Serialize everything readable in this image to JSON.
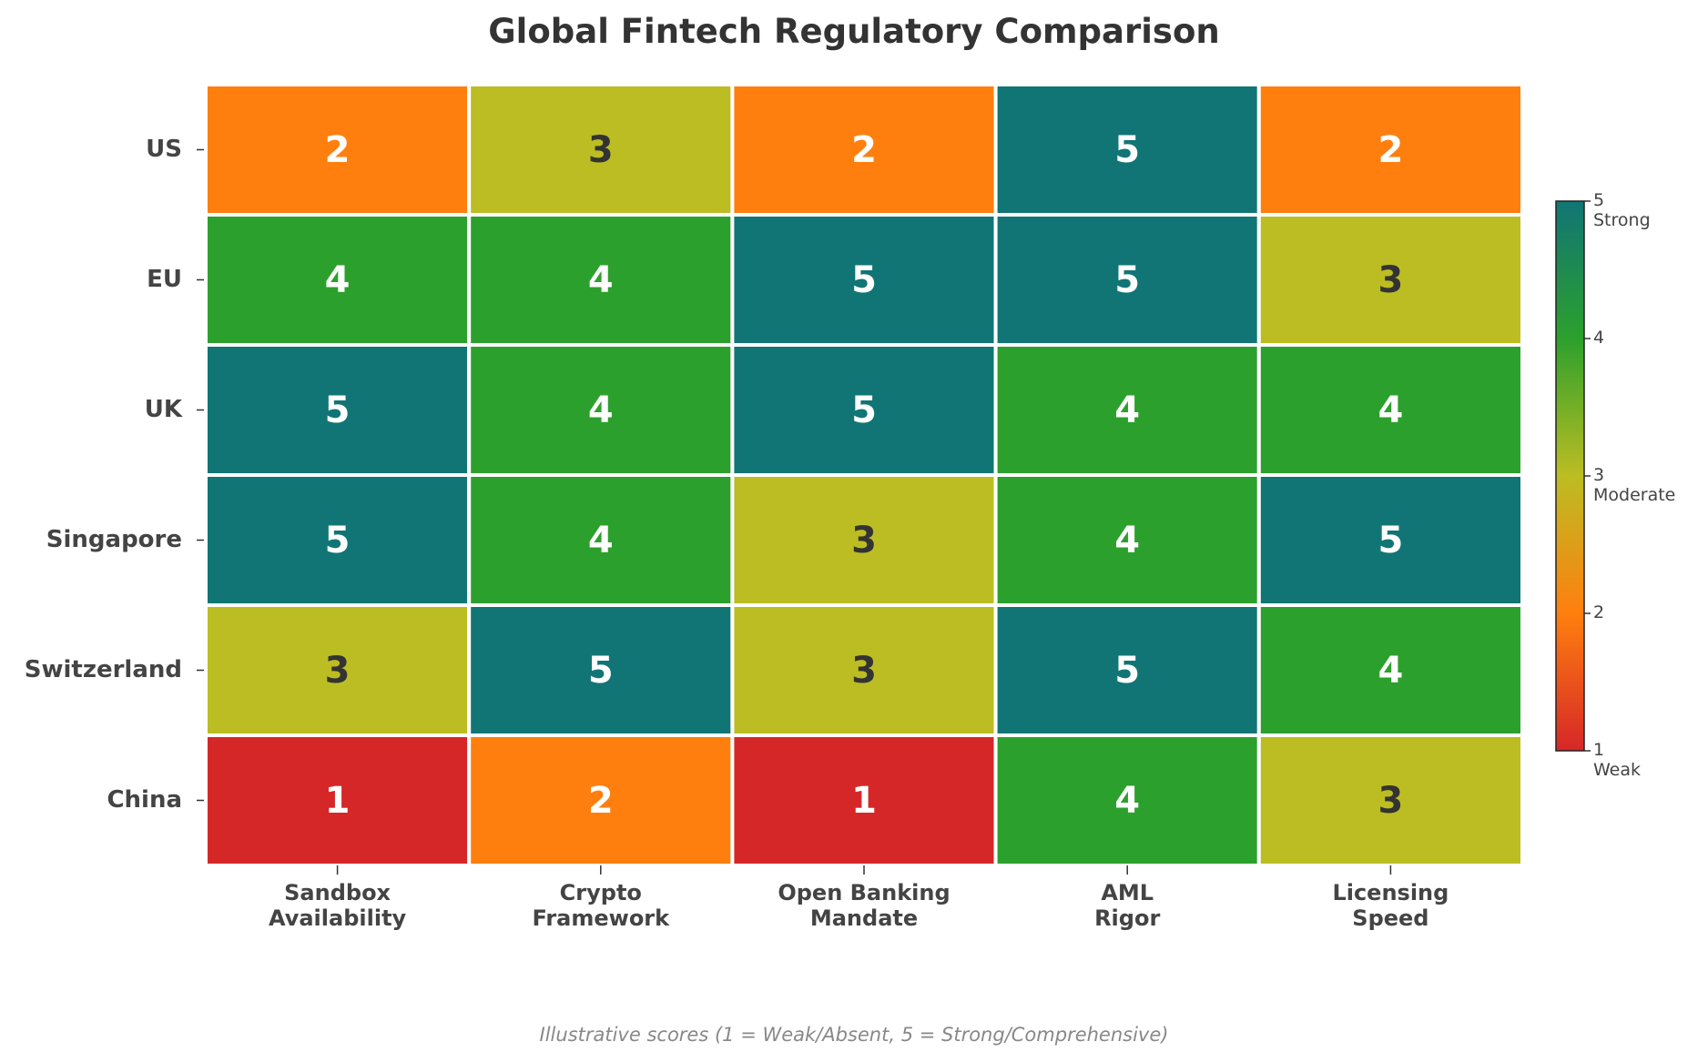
{
  "chart_data": {
    "type": "heatmap",
    "title": "Global Fintech Regulatory Comparison",
    "rows": [
      "US",
      "EU",
      "UK",
      "Singapore",
      "Switzerland",
      "China"
    ],
    "columns": [
      "Sandbox\nAvailability",
      "Crypto\nFramework",
      "Open Banking\nMandate",
      "AML\nRigor",
      "Licensing\nSpeed"
    ],
    "values": [
      [
        2,
        3,
        2,
        5,
        2
      ],
      [
        4,
        4,
        5,
        5,
        3
      ],
      [
        5,
        4,
        5,
        4,
        4
      ],
      [
        5,
        4,
        3,
        4,
        5
      ],
      [
        3,
        5,
        3,
        5,
        4
      ],
      [
        1,
        2,
        1,
        4,
        3
      ]
    ],
    "colorscale": [
      "#d62728",
      "#ff7f0e",
      "#bcbd22",
      "#2ca02c",
      "#117575"
    ],
    "label_colors": [
      "#ffffff",
      "#ffffff",
      "#333333",
      "#ffffff",
      "#ffffff"
    ],
    "clim": [
      1,
      5
    ],
    "colorbar_ticks": [
      {
        "value": 1,
        "label": "1\nWeak"
      },
      2,
      {
        "value": 3,
        "label": "3\nModerate"
      },
      4,
      {
        "value": 5,
        "label": "5\nStrong"
      }
    ],
    "footnote": "Illustrative scores (1 = Weak/Absent, 5 = Strong/Comprehensive)"
  }
}
